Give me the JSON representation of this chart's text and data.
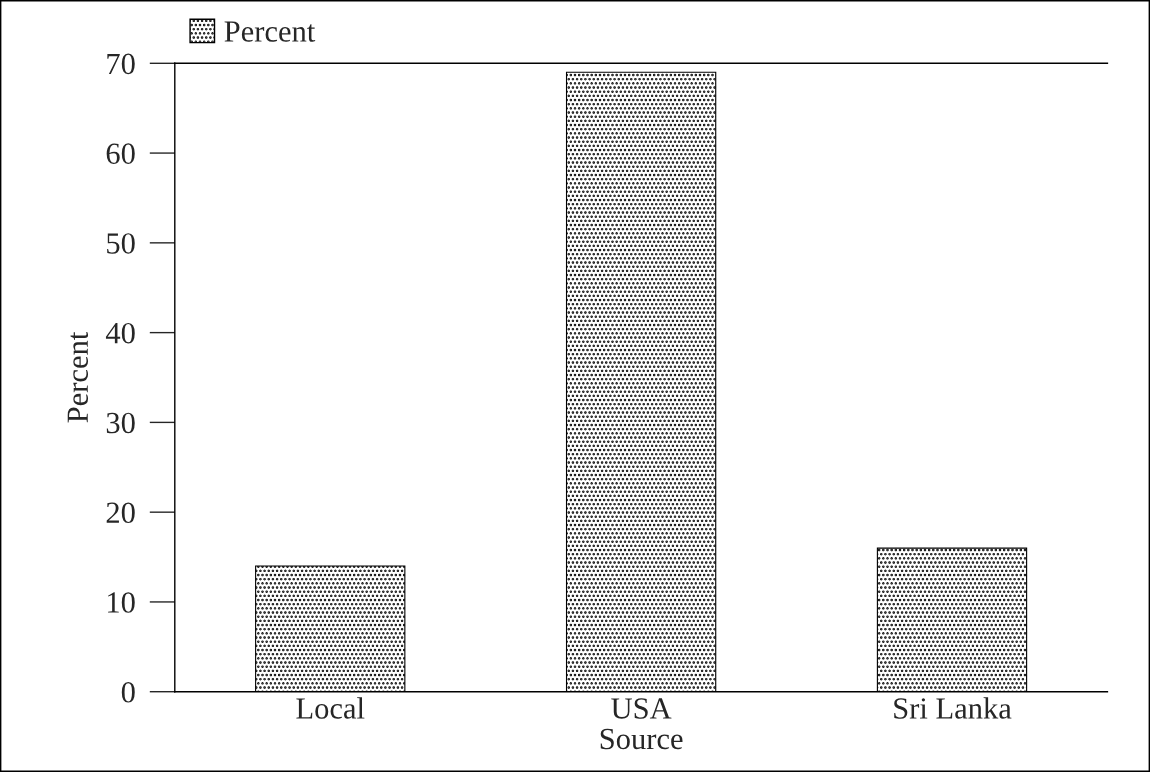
{
  "chart_data": {
    "type": "bar",
    "xlabel": "Source",
    "ylabel": "Percent",
    "categories": [
      "Local",
      "USA",
      "Sri Lanka"
    ],
    "series": [
      {
        "name": "Percent",
        "color": "#000000",
        "values": [
          14,
          69,
          16
        ]
      }
    ],
    "ylim": [
      0,
      70
    ],
    "yticks": [
      0,
      10,
      20,
      30,
      40,
      50,
      60,
      70
    ],
    "grid": false,
    "legend": "top left"
  }
}
